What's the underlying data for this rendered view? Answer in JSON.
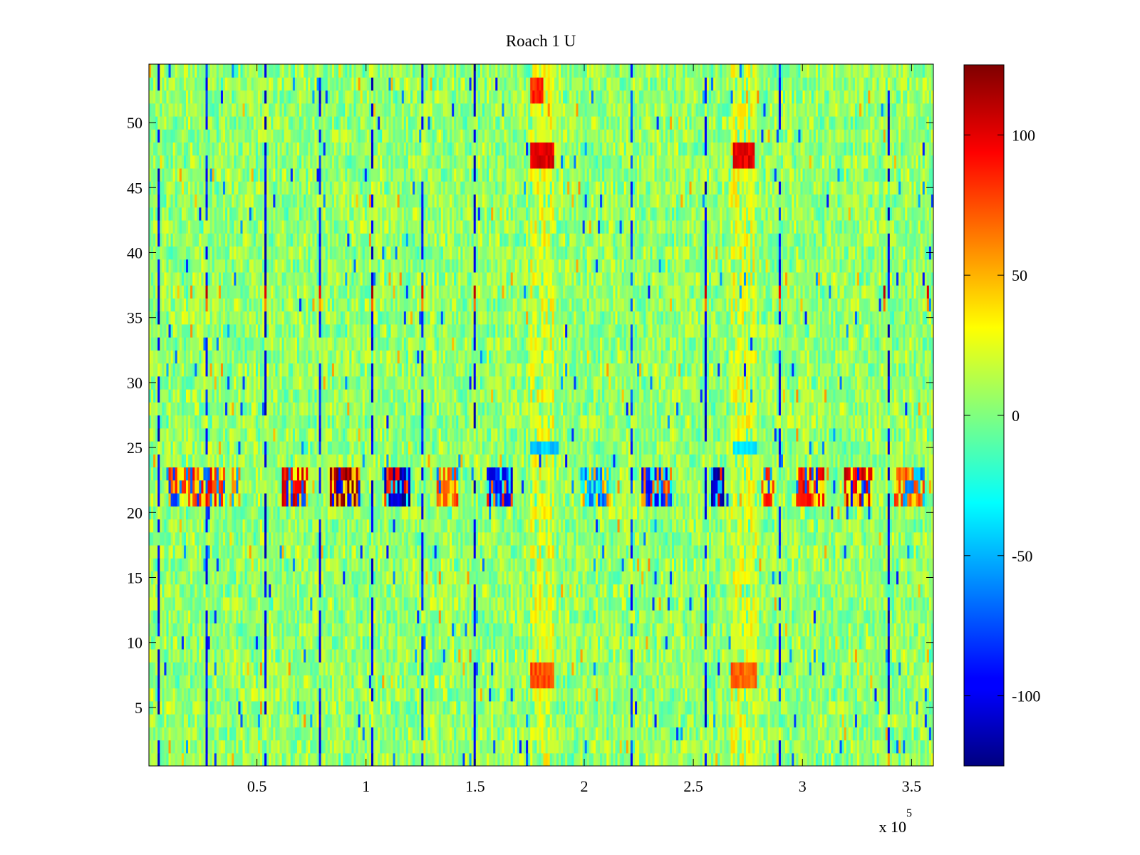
{
  "chart_data": {
    "type": "heatmap",
    "title": "Roach 1 U",
    "xlabel": "",
    "ylabel": "",
    "x_range": [
      500,
      360000
    ],
    "y_range": [
      0.5,
      54.5
    ],
    "x_exponent_label": "x 10",
    "x_exponent_power": "5",
    "x_ticks": [
      {
        "value": 50000,
        "label": "0.5"
      },
      {
        "value": 100000,
        "label": "1"
      },
      {
        "value": 150000,
        "label": "1.5"
      },
      {
        "value": 200000,
        "label": "2"
      },
      {
        "value": 250000,
        "label": "2.5"
      },
      {
        "value": 300000,
        "label": "3"
      },
      {
        "value": 350000,
        "label": "3.5"
      }
    ],
    "y_ticks": [
      {
        "value": 5,
        "label": "5"
      },
      {
        "value": 10,
        "label": "10"
      },
      {
        "value": 15,
        "label": "15"
      },
      {
        "value": 20,
        "label": "20"
      },
      {
        "value": 25,
        "label": "25"
      },
      {
        "value": 30,
        "label": "30"
      },
      {
        "value": 35,
        "label": "35"
      },
      {
        "value": 40,
        "label": "40"
      },
      {
        "value": 45,
        "label": "45"
      },
      {
        "value": 50,
        "label": "50"
      }
    ],
    "colorbar": {
      "colormap": "jet",
      "range": [
        -125,
        125
      ],
      "ticks": [
        {
          "value": 100,
          "label": "100"
        },
        {
          "value": 50,
          "label": "50"
        },
        {
          "value": 0,
          "label": "0"
        },
        {
          "value": -50,
          "label": "-50"
        },
        {
          "value": -100,
          "label": "-100"
        }
      ]
    },
    "rows": 54,
    "columns": 360,
    "background_value": 5,
    "strong_band_rows": [
      21,
      22,
      23
    ],
    "strong_band_segments": [
      {
        "x": [
          10000,
          35000
        ],
        "value": 85
      },
      {
        "x": [
          38000,
          42000
        ],
        "value": 60
      },
      {
        "x": [
          62000,
          73000
        ],
        "value": 95
      },
      {
        "x": [
          84000,
          97000
        ],
        "value": 120
      },
      {
        "x": [
          109000,
          120000
        ],
        "value": -110
      },
      {
        "x": [
          133000,
          142000
        ],
        "value": 75
      },
      {
        "x": [
          156000,
          167000
        ],
        "value": -90
      },
      {
        "x": [
          199000,
          212000
        ],
        "value": -60
      },
      {
        "x": [
          227000,
          240000
        ],
        "value": -85
      },
      {
        "x": [
          259000,
          264000
        ],
        "value": -110
      },
      {
        "x": [
          282000,
          287000
        ],
        "value": 80
      },
      {
        "x": [
          298000,
          310000
        ],
        "value": 90
      },
      {
        "x": [
          320000,
          332000
        ],
        "value": 100
      },
      {
        "x": [
          343000,
          356000
        ],
        "value": 70
      }
    ],
    "hot_spots": [
      {
        "x": [
          176000,
          186000
        ],
        "rows": [
          47,
          48
        ],
        "value": 100
      },
      {
        "x": [
          269000,
          278000
        ],
        "rows": [
          47,
          48
        ],
        "value": 100
      },
      {
        "x": [
          176000,
          181000
        ],
        "rows": [
          52,
          53
        ],
        "value": 85
      },
      {
        "x": [
          176000,
          186000
        ],
        "rows": [
          7,
          8
        ],
        "value": 75
      },
      {
        "x": [
          268000,
          279000
        ],
        "rows": [
          7,
          8
        ],
        "value": 70
      },
      {
        "x": [
          176000,
          188000
        ],
        "rows": [
          25
        ],
        "value": -45
      },
      {
        "x": [
          269000,
          279000
        ],
        "rows": [
          25
        ],
        "value": -40
      }
    ],
    "warm_columns": [
      {
        "x": [
          176000,
          186000
        ],
        "value": 30
      },
      {
        "x": [
          268000,
          279000
        ],
        "value": 30
      }
    ],
    "dark_columns": [
      {
        "x": 5000,
        "value": -100
      },
      {
        "x": 27000,
        "value": -90
      },
      {
        "x": 54000,
        "value": -100
      },
      {
        "x": 79000,
        "value": -90
      },
      {
        "x": 103000,
        "value": -100
      },
      {
        "x": 126000,
        "value": -90
      },
      {
        "x": 150000,
        "value": -100
      },
      {
        "x": 222000,
        "value": -80
      },
      {
        "x": 256000,
        "value": -100
      },
      {
        "x": 290000,
        "value": -90
      },
      {
        "x": 340000,
        "value": -100
      }
    ],
    "row_37_peaks": [
      {
        "x": 27000,
        "value": 110
      },
      {
        "x": 54000,
        "value": 100
      },
      {
        "x": 79000,
        "value": 95
      },
      {
        "x": 103000,
        "value": 115
      },
      {
        "x": 126000,
        "value": 100
      },
      {
        "x": 150000,
        "value": 110
      },
      {
        "x": 256000,
        "value": 105
      },
      {
        "x": 290000,
        "value": 95
      },
      {
        "x": 338000,
        "value": 110
      },
      {
        "x": 358000,
        "value": 100
      }
    ]
  }
}
